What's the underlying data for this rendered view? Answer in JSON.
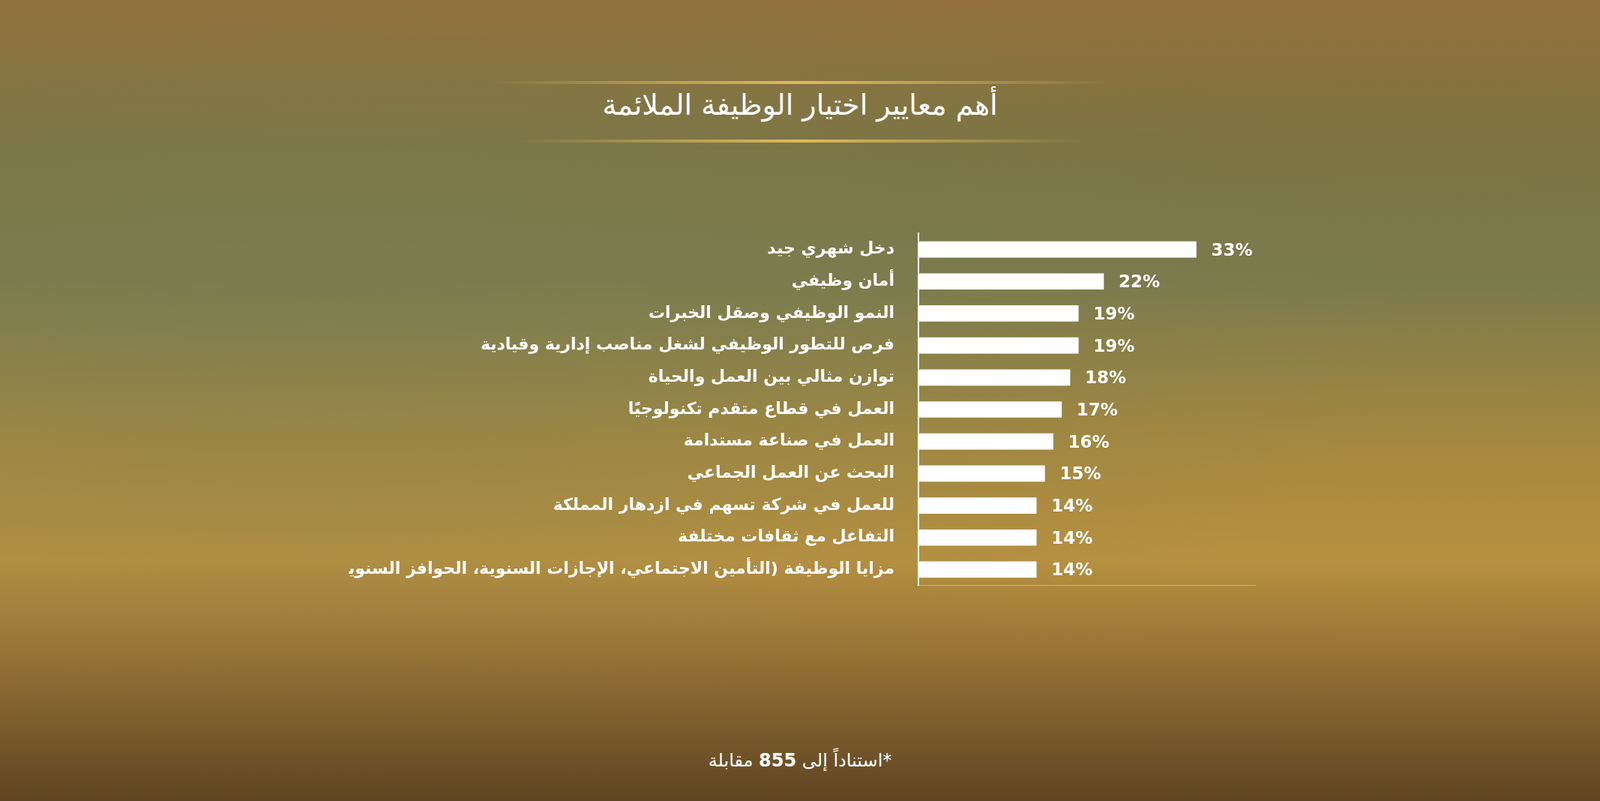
{
  "chart_data": {
    "type": "bar",
    "orientation": "horizontal",
    "title": "أهم معايير اختيار الوظيفة الملائمة",
    "footnote": "*استناداً إلى 855 مقابلة",
    "categories": [
      "دخل شهري جيد",
      "أمان وظيفي",
      "النمو الوظيفي وصقل الخبرات",
      "فرص للتطور الوظيفي لشغل مناصب إدارية وقيادية",
      "توازن مثالي بين العمل والحياة",
      "العمل في قطاع متقدم تكنولوجيًا",
      "العمل في صناعة مستدامة",
      "البحث عن العمل الجماعي",
      "للعمل في شركة تسهم في ازدهار المملكة",
      "التفاعل مع ثقافات مختلفة",
      "مزايا الوظيفة (التأمين الاجتماعي، الإجازات السنوية، الحوافز السنوية، إلخ)"
    ],
    "values": [
      33,
      22,
      19,
      19,
      18,
      17,
      16,
      15,
      14,
      14,
      14
    ],
    "value_labels": [
      "33%",
      "22%",
      "19%",
      "19%",
      "18%",
      "17%",
      "16%",
      "15%",
      "14%",
      "14%",
      "14%"
    ],
    "color": "#ffffff",
    "xlim": [
      0,
      40
    ],
    "grid": false,
    "data_labels": true,
    "tick_labels": "y"
  }
}
